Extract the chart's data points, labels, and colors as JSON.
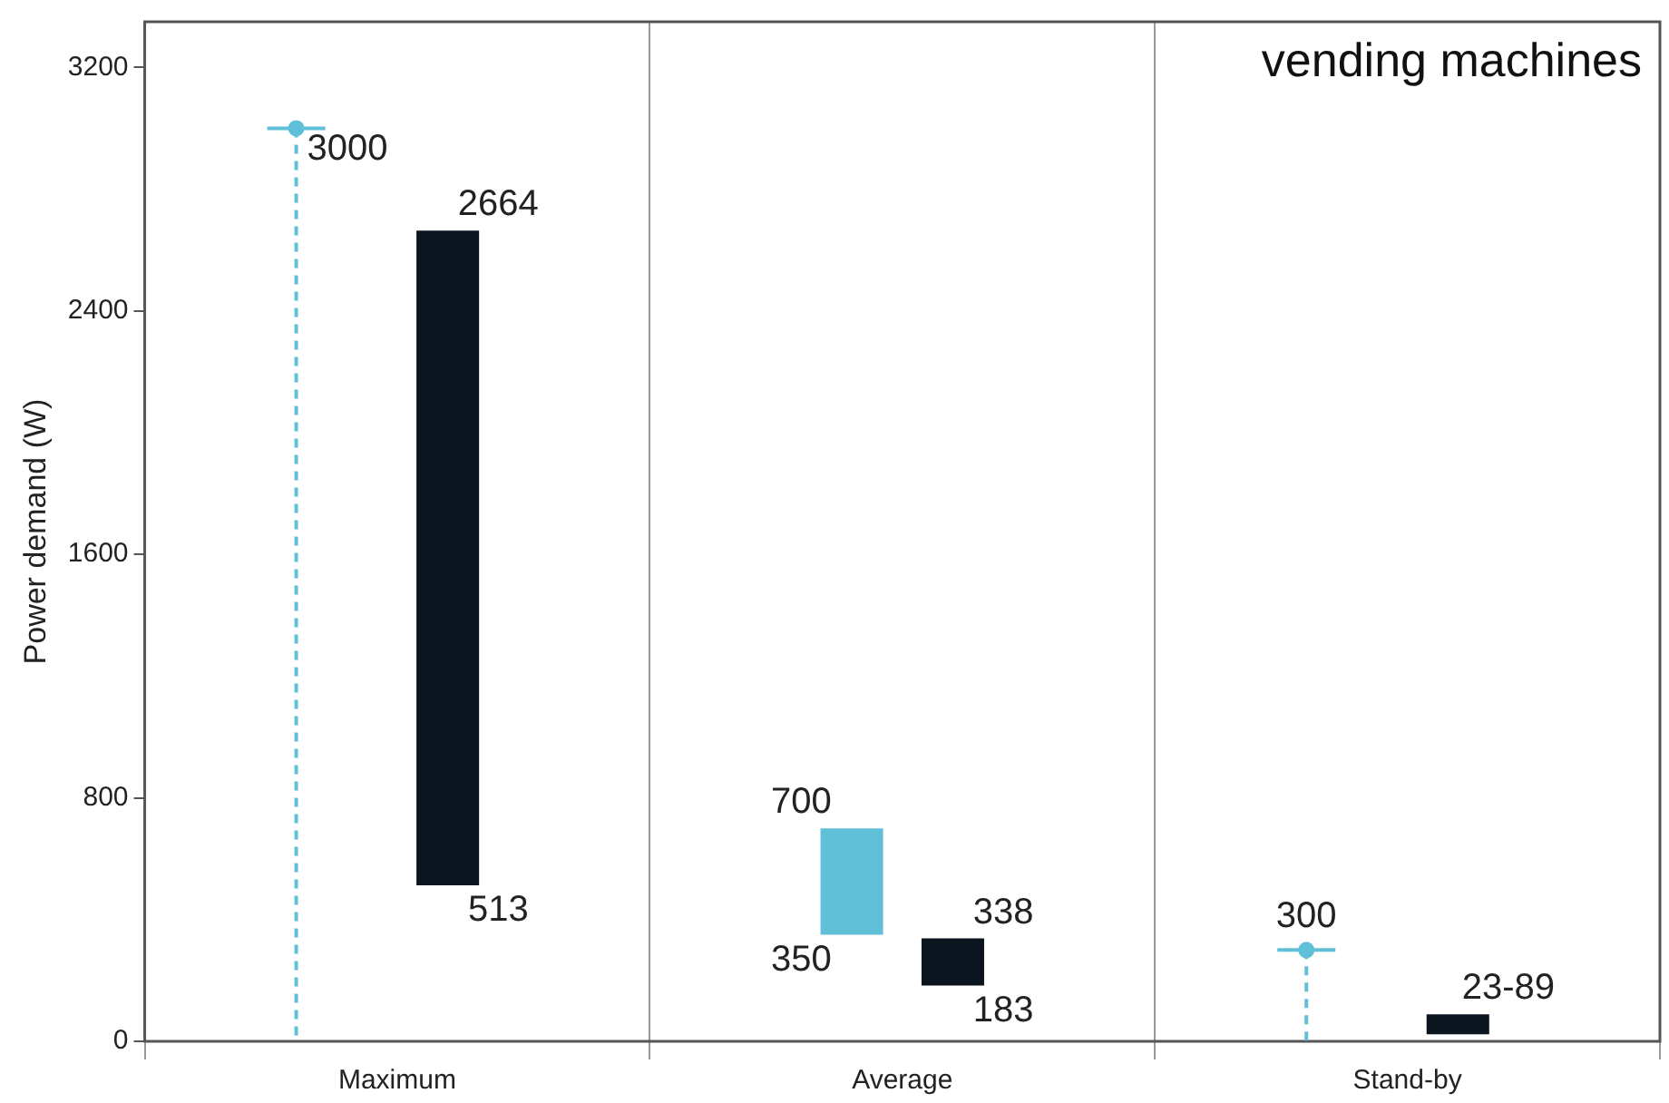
{
  "chart_data": {
    "type": "bar",
    "categories": [
      "Maximum",
      "Average",
      "Stand-by"
    ],
    "ylabel": "Power demand (W)",
    "ylim": [
      0,
      3350
    ],
    "yticks": [
      0,
      800,
      1600,
      2400,
      3200
    ],
    "grid": "x",
    "legend": false,
    "marker": "circle",
    "line_style": "dashed",
    "title": "vending machines",
    "annotations": [
      "513",
      "350",
      "183"
    ],
    "series": [
      {
        "type": "lollipop",
        "color": "#5fc0d8",
        "values": [
          3000,
          null,
          300
        ],
        "value_labels": [
          "3000",
          null,
          "300"
        ]
      },
      {
        "color": "#5fc0d8",
        "base": [
          null,
          350,
          null
        ],
        "values": [
          null,
          350,
          null
        ],
        "value_labels": [
          null,
          "700",
          null
        ]
      },
      {
        "color": "#0b1520",
        "base": [
          513,
          183,
          23
        ],
        "values": [
          2151,
          155,
          66
        ],
        "value_labels": [
          "2664",
          "338",
          "23-89"
        ]
      }
    ]
  }
}
